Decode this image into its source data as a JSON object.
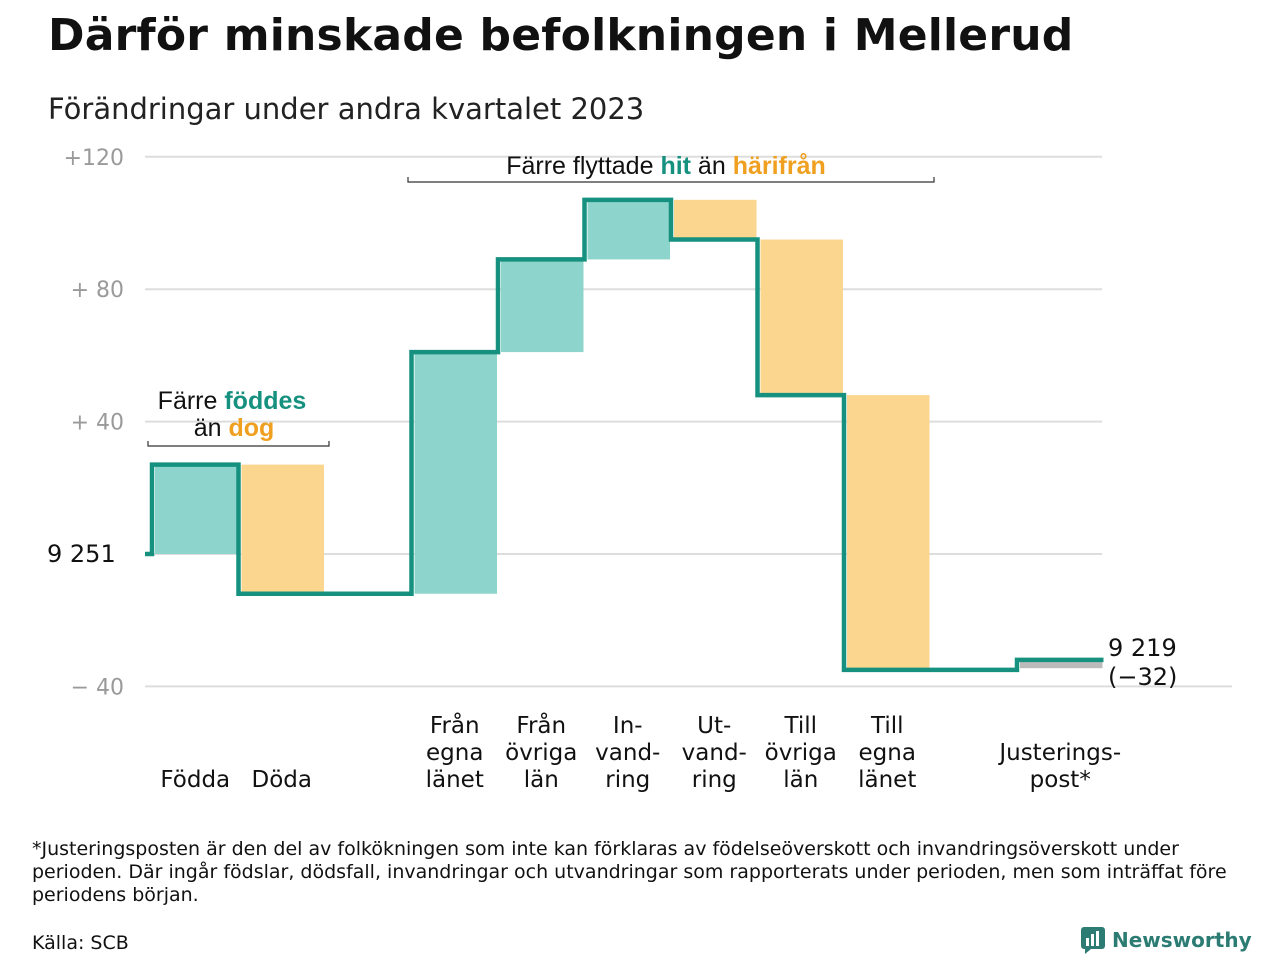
{
  "header": {
    "title": "Därför minskade befolkningen i Mellerud",
    "subtitle": "Förändringar under andra kvartalet 2023"
  },
  "colors": {
    "teal_line": "#17917f",
    "teal_fill": "#8dd4cc",
    "orange_fill": "#fad68f",
    "orange_text": "#f0a020",
    "teal_text": "#17917f",
    "grid": "#dddddd",
    "adjustment": "#bbbbbb"
  },
  "chart_data": {
    "type": "waterfall",
    "start": {
      "label": "9  251",
      "value": 9251
    },
    "end": {
      "label": "9 219",
      "change_label": "(−32)",
      "value": 9219
    },
    "yticks": [
      {
        "label": "+120",
        "value": 120
      },
      {
        "label": "+  80",
        "value": 80
      },
      {
        "label": "+  40",
        "value": 40
      },
      {
        "label": "−  40",
        "value": -40
      }
    ],
    "ylim": [
      -40,
      120
    ],
    "steps": [
      {
        "label": "Födda",
        "change": 27,
        "kind": "in"
      },
      {
        "label": "Döda",
        "change": -39,
        "kind": "out"
      },
      {
        "label": "",
        "change": 0,
        "kind": "gap"
      },
      {
        "label": "Från egna länet",
        "label_lines": [
          "Från",
          "egna",
          "länet"
        ],
        "change": 73,
        "kind": "in"
      },
      {
        "label": "Från övriga län",
        "label_lines": [
          "Från",
          "övriga",
          "län"
        ],
        "change": 28,
        "kind": "in"
      },
      {
        "label": "Invandring",
        "label_lines": [
          "In-",
          "vand-",
          "ring"
        ],
        "change": 18,
        "kind": "in"
      },
      {
        "label": "Utvandring",
        "label_lines": [
          "Ut-",
          "vand-",
          "ring"
        ],
        "change": -12,
        "kind": "out"
      },
      {
        "label": "Till övriga län",
        "label_lines": [
          "Till",
          "övriga",
          "län"
        ],
        "change": -47,
        "kind": "out"
      },
      {
        "label": "Till egna länet",
        "label_lines": [
          "Till",
          "egna",
          "länet"
        ],
        "change": -83,
        "kind": "out"
      },
      {
        "label": "",
        "change": 0,
        "kind": "gap"
      },
      {
        "label": "Justeringspost*",
        "label_lines": [
          "Justerings-",
          "post*"
        ],
        "change": 3,
        "kind": "adjust"
      }
    ],
    "annotations": [
      {
        "parts": [
          "Färre ",
          "föddes"
        ],
        "parts2": [
          "än ",
          "dog"
        ]
      },
      {
        "parts": [
          "Färre flyttade ",
          "hit",
          " än ",
          "härifrån"
        ]
      }
    ]
  },
  "footnote": "*Justeringsposten är den del av folkökningen som inte kan förklaras av födelseöverskott och invandringsöverskott under perioden. Där ingår födslar, dödsfall, invandringar och utvandringar som rapporterats under perioden, men som inträffat före periodens början.",
  "source": "Källa: SCB",
  "brand": {
    "name": "Newsworthy",
    "icon": "newsworthy-logo-icon"
  }
}
